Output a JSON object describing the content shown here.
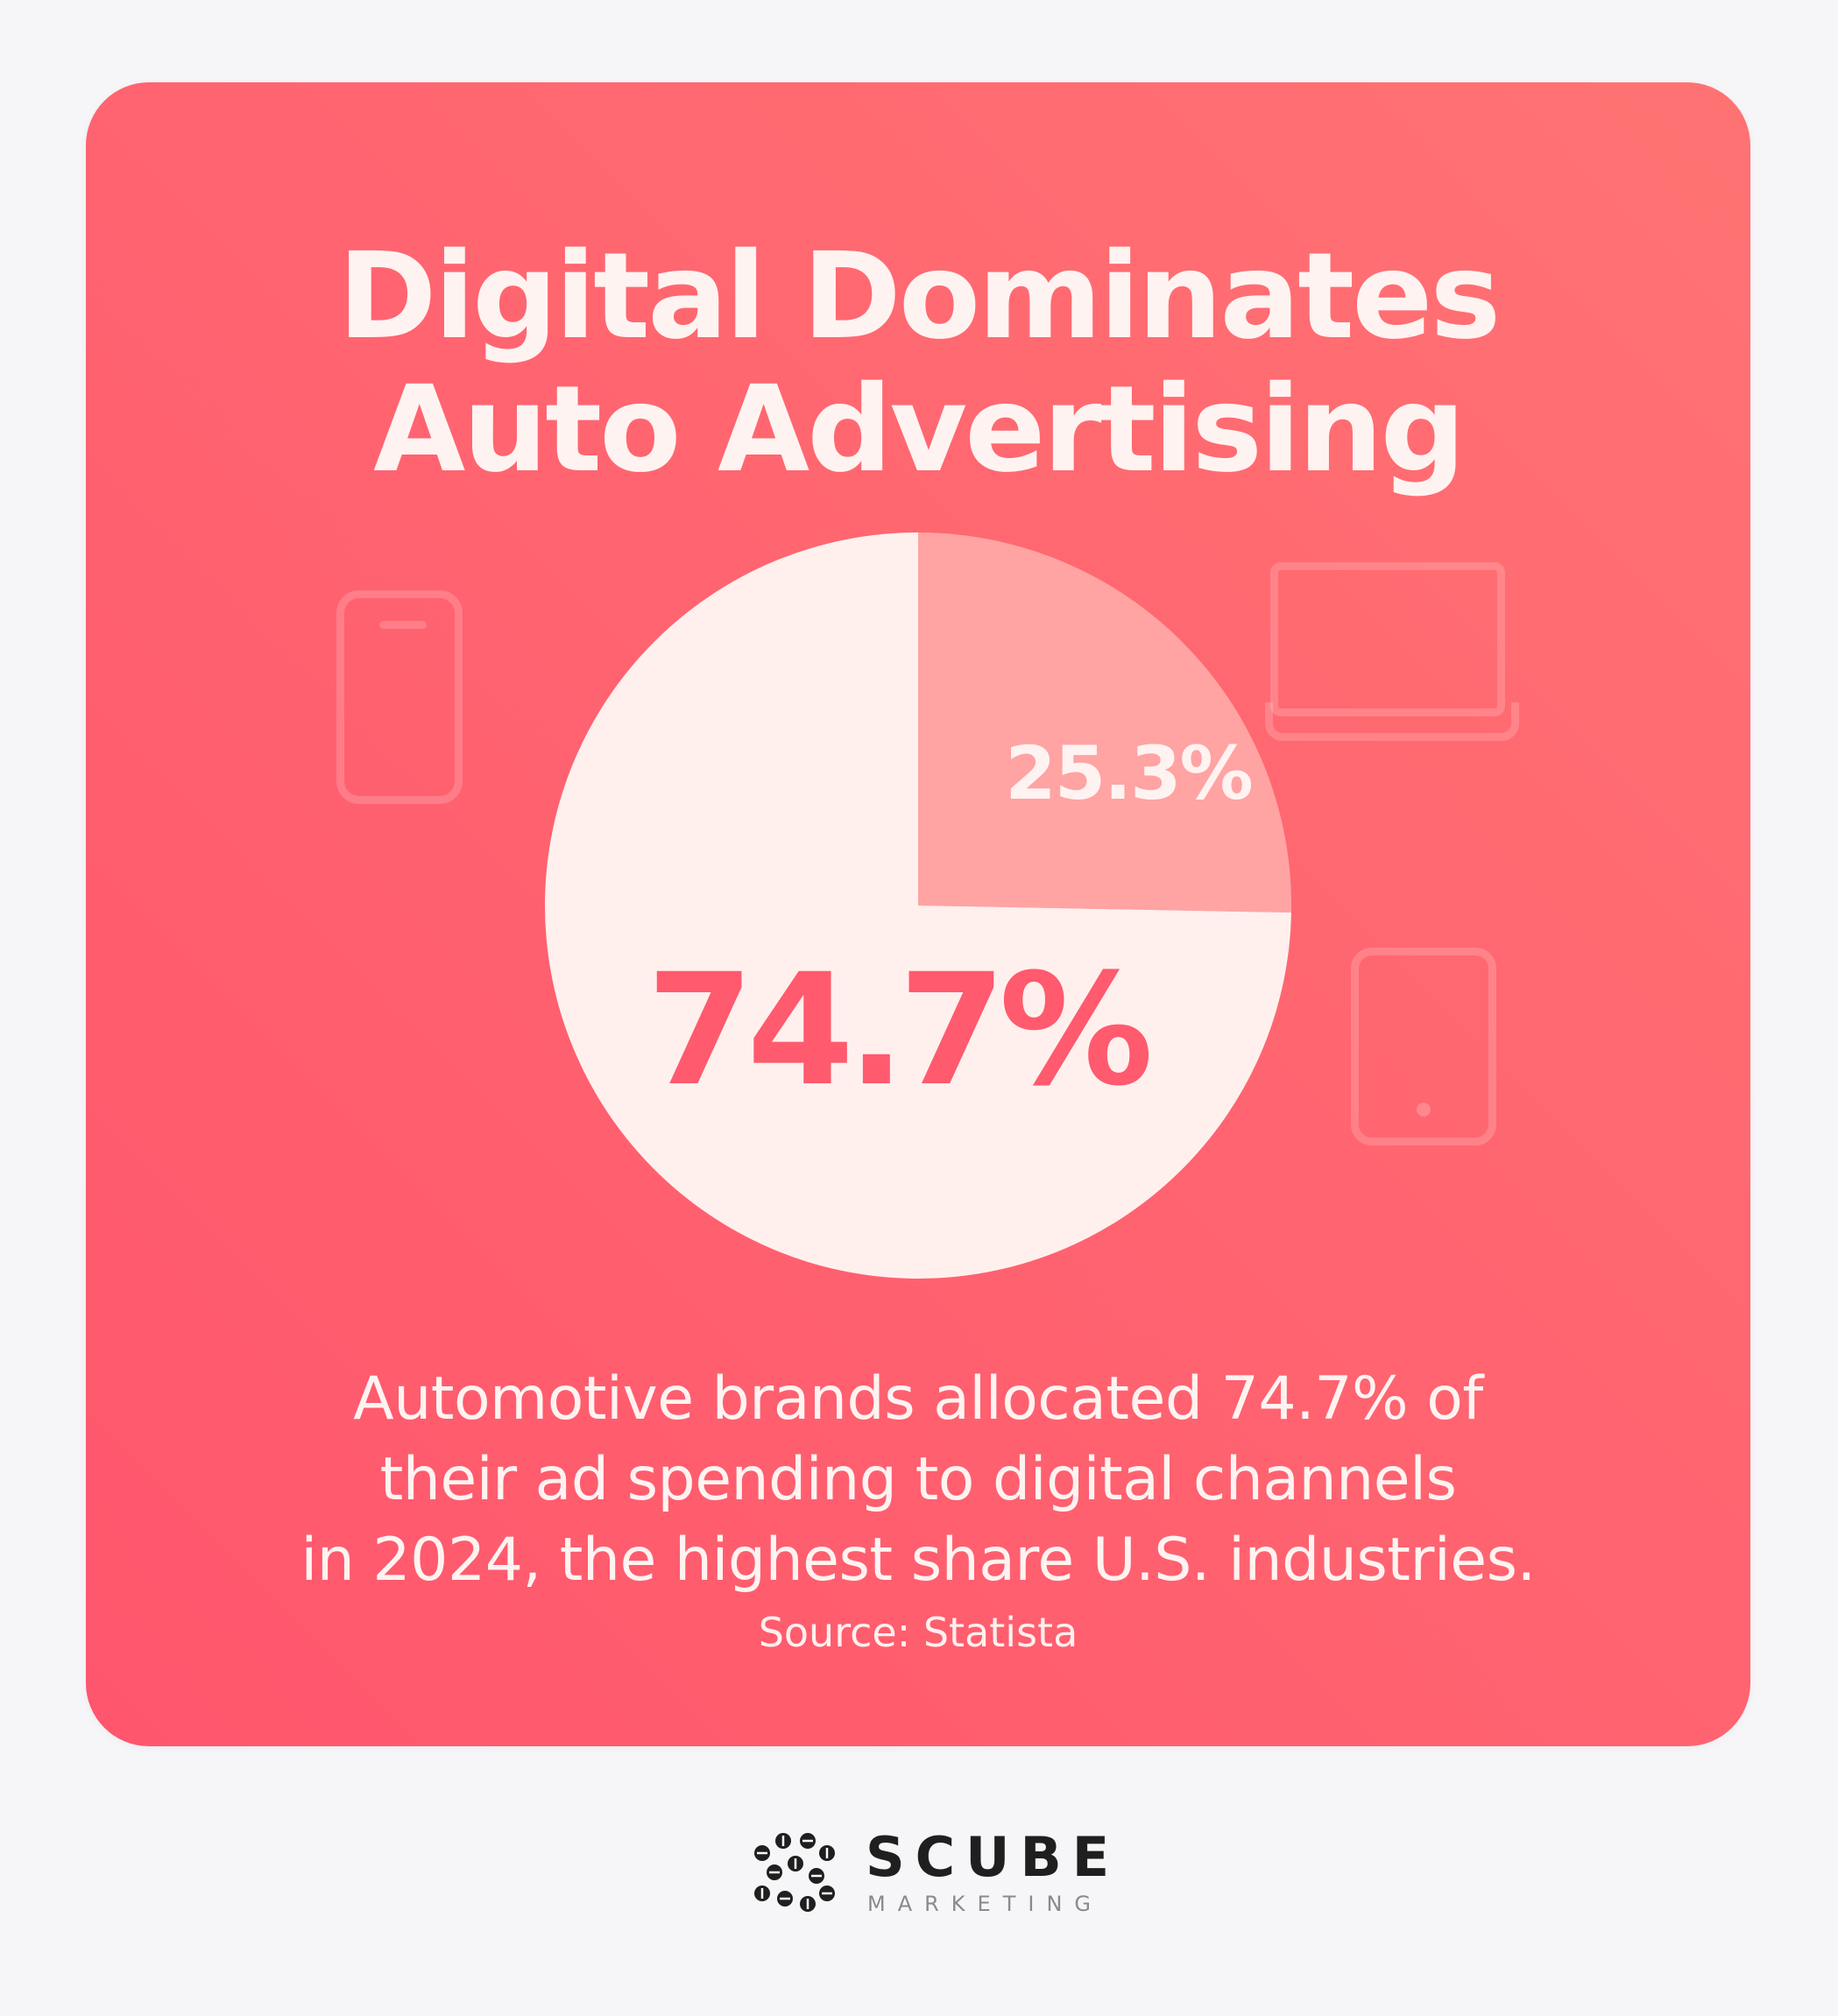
{
  "title": {
    "line1": "Digital Dominates",
    "line2": "Auto Advertising"
  },
  "chart_data": {
    "type": "pie",
    "title": "Digital Dominates Auto Advertising",
    "slices": [
      {
        "label": "74.7%",
        "value": 74.7,
        "color": "#fff0ee"
      },
      {
        "label": "25.3%",
        "value": 25.3,
        "color": "#ffa3a3"
      }
    ],
    "start_angle_deg": 0,
    "direction": "clockwise",
    "legend": "none"
  },
  "description": {
    "line1": "Automotive brands allocated 74.7% of",
    "line2": "their ad spending to digital channels",
    "line3": "in 2024, the highest share U.S. industries."
  },
  "source": "Source: Statista",
  "icons": {
    "phone": "smartphone-icon",
    "laptop": "laptop-icon",
    "tablet": "tablet-icon"
  },
  "logo": {
    "name": "SCUBE",
    "tagline": "MARKETING"
  },
  "colors": {
    "card_top": "#ff7373",
    "card_bottom": "#ff566d",
    "page_bg": "#f6f5f8",
    "accent_text": "#ff5a6e"
  }
}
